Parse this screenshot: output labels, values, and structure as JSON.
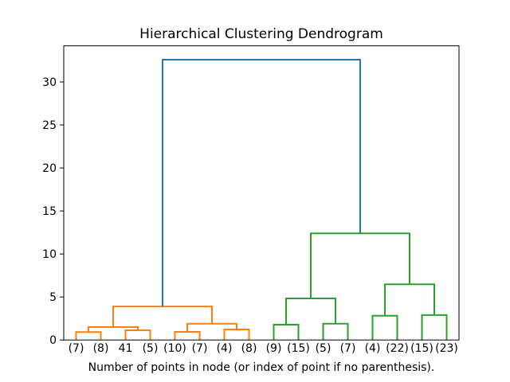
{
  "chart_data": {
    "type": "dendrogram",
    "title": "Hierarchical Clustering Dendrogram",
    "xlabel": "Number of points in node (or index of point if no parenthesis).",
    "leaf_labels": [
      "(7)",
      "(8)",
      "41",
      "(5)",
      "(10)",
      "(7)",
      "(4)",
      "(8)",
      "(9)",
      "(15)",
      "(5)",
      "(7)",
      "(4)",
      "(22)",
      "(15)",
      "(23)"
    ],
    "yticks": [
      0,
      5,
      10,
      15,
      20,
      25,
      30
    ],
    "ylim": [
      0,
      34.2
    ],
    "xlim_leaf_units": 160,
    "grid": false,
    "legend": false,
    "colors": {
      "blue": "#1f77b4",
      "orange": "#ff7f0e",
      "green": "#2ca02c",
      "spine": "#000000",
      "text": "#000000",
      "background": "#ffffff"
    },
    "links": [
      {
        "id": "A",
        "children": [
          0,
          1
        ],
        "height": 0.92,
        "color": "orange"
      },
      {
        "id": "B",
        "children": [
          2,
          3
        ],
        "height": 1.13,
        "color": "orange"
      },
      {
        "id": "C",
        "children": [
          "A",
          "B"
        ],
        "height": 1.5,
        "color": "orange"
      },
      {
        "id": "D",
        "children": [
          4,
          5
        ],
        "height": 0.94,
        "color": "orange"
      },
      {
        "id": "E",
        "children": [
          6,
          7
        ],
        "height": 1.22,
        "color": "orange"
      },
      {
        "id": "F",
        "children": [
          "D",
          "E"
        ],
        "height": 1.9,
        "color": "orange"
      },
      {
        "id": "G",
        "children": [
          "C",
          "F"
        ],
        "height": 3.9,
        "color": "orange"
      },
      {
        "id": "H",
        "children": [
          8,
          9
        ],
        "height": 1.78,
        "color": "green"
      },
      {
        "id": "I",
        "children": [
          10,
          11
        ],
        "height": 1.9,
        "color": "green"
      },
      {
        "id": "J",
        "children": [
          "H",
          "I"
        ],
        "height": 4.83,
        "color": "green"
      },
      {
        "id": "K",
        "children": [
          12,
          13
        ],
        "height": 2.82,
        "color": "green"
      },
      {
        "id": "L",
        "children": [
          14,
          15
        ],
        "height": 2.9,
        "color": "green"
      },
      {
        "id": "M",
        "children": [
          "K",
          "L"
        ],
        "height": 6.47,
        "color": "green"
      },
      {
        "id": "N",
        "children": [
          "J",
          "M"
        ],
        "height": 12.39,
        "color": "green"
      },
      {
        "id": "R",
        "children": [
          "G",
          "N"
        ],
        "height": 32.59,
        "color": "blue"
      }
    ]
  }
}
